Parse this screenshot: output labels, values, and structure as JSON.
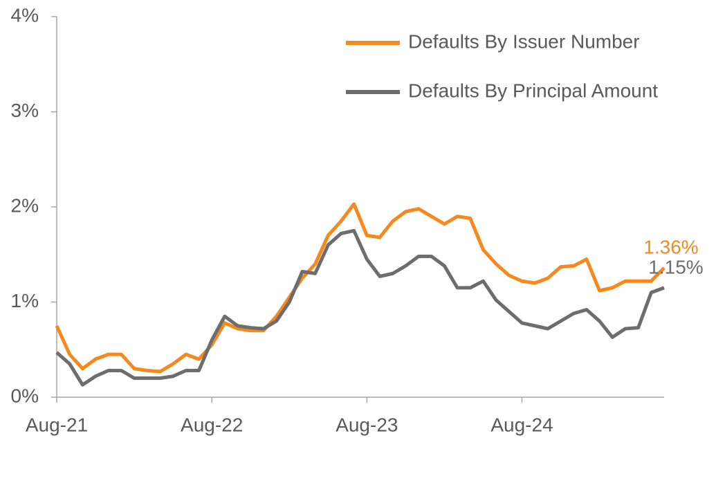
{
  "chart_data": {
    "type": "line",
    "categories": [
      "Aug-21",
      null,
      null,
      null,
      null,
      null,
      null,
      null,
      null,
      null,
      null,
      null,
      "Aug-22",
      null,
      null,
      null,
      null,
      null,
      null,
      null,
      null,
      null,
      null,
      null,
      "Aug-23",
      null,
      null,
      null,
      null,
      null,
      null,
      null,
      null,
      null,
      null,
      null,
      "Aug-24",
      null,
      null,
      null,
      null,
      null,
      null,
      null,
      null,
      null,
      null,
      null
    ],
    "series": [
      {
        "name": "Defaults By Issuer Number",
        "color": "#f5891f",
        "values": [
          0.75,
          0.45,
          0.3,
          0.4,
          0.45,
          0.45,
          0.3,
          0.28,
          0.27,
          0.35,
          0.45,
          0.4,
          0.55,
          0.78,
          0.72,
          0.7,
          0.7,
          0.85,
          1.05,
          1.25,
          1.4,
          1.7,
          1.85,
          2.03,
          1.7,
          1.68,
          1.85,
          1.95,
          1.98,
          1.9,
          1.82,
          1.9,
          1.88,
          1.55,
          1.4,
          1.28,
          1.22,
          1.2,
          1.25,
          1.37,
          1.38,
          1.45,
          1.12,
          1.15,
          1.22,
          1.22,
          1.22,
          1.36
        ],
        "value_labels": [
          null,
          null,
          null,
          null,
          null,
          null,
          null,
          null,
          null,
          null,
          null,
          null,
          null,
          null,
          null,
          null,
          null,
          null,
          null,
          null,
          null,
          null,
          null,
          null,
          null,
          null,
          null,
          null,
          null,
          null,
          null,
          null,
          null,
          null,
          null,
          null,
          null,
          null,
          null,
          null,
          null,
          null,
          null,
          null,
          null,
          null,
          null,
          "1.36%"
        ]
      },
      {
        "name": "Defaults By Principal Amount",
        "color": "#6d6d6d",
        "values": [
          0.47,
          0.35,
          0.13,
          0.22,
          0.28,
          0.28,
          0.2,
          0.2,
          0.2,
          0.22,
          0.28,
          0.28,
          0.6,
          0.85,
          0.75,
          0.73,
          0.72,
          0.8,
          1.0,
          1.32,
          1.3,
          1.6,
          1.72,
          1.75,
          1.45,
          1.27,
          1.3,
          1.38,
          1.48,
          1.48,
          1.38,
          1.15,
          1.15,
          1.22,
          1.02,
          0.9,
          0.78,
          0.75,
          0.72,
          0.8,
          0.88,
          0.92,
          0.8,
          0.63,
          0.72,
          0.73,
          1.1,
          1.15
        ],
        "value_labels": [
          null,
          null,
          null,
          null,
          null,
          null,
          null,
          null,
          null,
          null,
          null,
          null,
          null,
          null,
          null,
          null,
          null,
          null,
          null,
          null,
          null,
          null,
          null,
          null,
          null,
          null,
          null,
          null,
          null,
          null,
          null,
          null,
          null,
          null,
          null,
          null,
          null,
          null,
          null,
          null,
          null,
          null,
          null,
          null,
          null,
          null,
          null,
          "1.15%"
        ]
      }
    ],
    "ylim": [
      0,
      4
    ],
    "yticks": [
      {
        "value": 0,
        "label": "0%"
      },
      {
        "value": 1,
        "label": "1%"
      },
      {
        "value": 2,
        "label": "2%"
      },
      {
        "value": 3,
        "label": "3%"
      },
      {
        "value": 4,
        "label": "4%"
      }
    ],
    "grid": false,
    "legend": "upper right"
  }
}
